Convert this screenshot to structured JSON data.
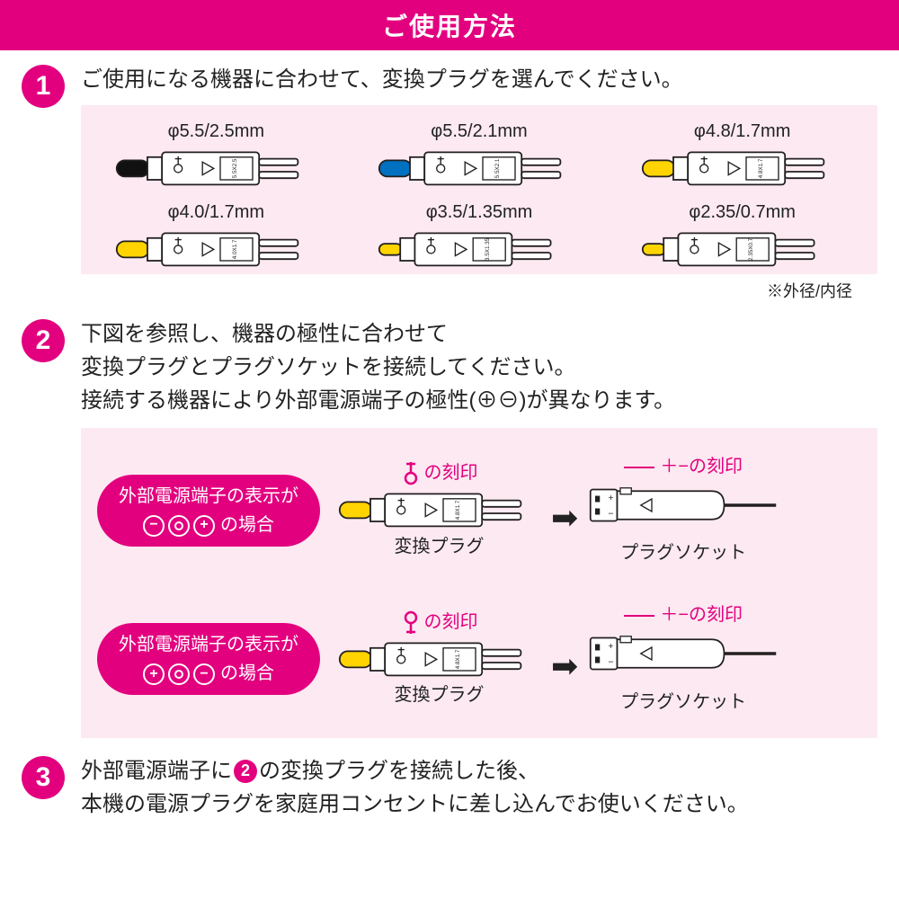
{
  "header": {
    "title": "ご使用方法"
  },
  "colors": {
    "accent": "#e3007f",
    "pink_box": "#fce9f1",
    "text": "#222222",
    "plug_outline": "#231f20"
  },
  "step1": {
    "num": "1",
    "text": "ご使用になる機器に合わせて、変換プラグを選んでください。",
    "plugs": [
      {
        "label": "φ5.5/2.5mm",
        "tip": "#111111",
        "mark": "5.5X2.5"
      },
      {
        "label": "φ5.5/2.1mm",
        "tip": "#0070c0",
        "mark": "5.5X2.1"
      },
      {
        "label": "φ4.8/1.7mm",
        "tip": "#ffd400",
        "mark": "4.8X1.7"
      },
      {
        "label": "φ4.0/1.7mm",
        "tip": "#ffd400",
        "mark": "4.0X1.7"
      },
      {
        "label": "φ3.5/1.35mm",
        "tip": "#ffd400",
        "mark": "3.5X1.35"
      },
      {
        "label": "φ2.35/0.7mm",
        "tip": "#ffd400",
        "mark": "2.35X0.7"
      }
    ],
    "footnote": "※外径/内径"
  },
  "step2": {
    "num": "2",
    "line1": "下図を参照し、機器の極性に合わせて",
    "line2": "変換プラグとプラグソケットを接続してください。",
    "line3": "接続する機器により外部電源端子の極性(⊕⊖)が異なります。",
    "rows": [
      {
        "pill_line1": "外部電源端子の表示が",
        "pill_syms": [
          "−",
          "C",
          "+"
        ],
        "pill_suffix": "の場合",
        "plug_mark_label": "の刻印",
        "plug_label": "変換プラグ",
        "socket_mark_label": "＋−の刻印",
        "socket_label": "プラグソケット",
        "orientation": "up",
        "plug_tip": "#ffd400",
        "plug_code": "4.8X1.7"
      },
      {
        "pill_line1": "外部電源端子の表示が",
        "pill_syms": [
          "+",
          "C",
          "−"
        ],
        "pill_suffix": "の場合",
        "plug_mark_label": "の刻印",
        "plug_label": "変換プラグ",
        "socket_mark_label": "＋−の刻印",
        "socket_label": "プラグソケット",
        "orientation": "down",
        "plug_tip": "#ffd400",
        "plug_code": "4.8X1.7"
      }
    ]
  },
  "step3": {
    "num": "3",
    "pre": "外部電源端子に",
    "inline_ref": "2",
    "mid": "の変換プラグを接続した後、",
    "line2": "本機の電源プラグを家庭用コンセントに差し込んでお使いください。"
  }
}
